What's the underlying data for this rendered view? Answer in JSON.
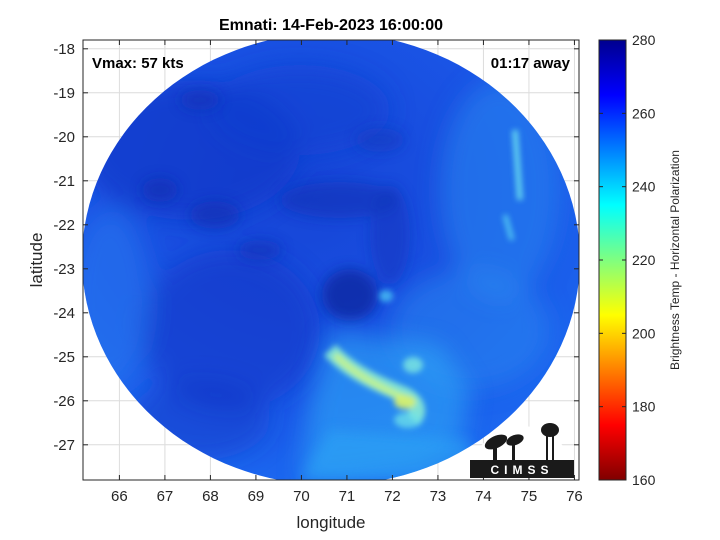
{
  "title": "Emnati: 14-Feb-2023 16:00:00",
  "annotations": {
    "vmax": "Vmax: 57 kts",
    "time_offset": "01:17 away"
  },
  "axes": {
    "xlabel": "longitude",
    "ylabel": "latitude",
    "xlim": [
      65.2,
      76.1
    ],
    "ylim": [
      -27.8,
      -17.8
    ],
    "xticks": [
      66,
      67,
      68,
      69,
      70,
      71,
      72,
      73,
      74,
      75,
      76
    ],
    "yticks": [
      -18,
      -19,
      -20,
      -21,
      -22,
      -23,
      -24,
      -25,
      -26,
      -27
    ],
    "grid": true
  },
  "colorbar": {
    "label": "Brightness Temp - Horizontal Polarization",
    "min": 160,
    "max": 280,
    "ticks": [
      280,
      260,
      240,
      220,
      200,
      180,
      160
    ],
    "colormap": "jet"
  },
  "chart_data": {
    "type": "heatmap",
    "title": "Emnati: 14-Feb-2023 16:00:00",
    "xlabel": "longitude",
    "ylabel": "latitude",
    "xlim": [
      65.2,
      76.1
    ],
    "ylim": [
      -27.8,
      -17.8
    ],
    "storm_center": {
      "lon": 70.9,
      "lat": -23.3
    },
    "swath_center": {
      "lon": 70.7,
      "lat": -22.9
    },
    "features": [
      {
        "name": "cold band",
        "lon": 71.8,
        "lat": -25.7,
        "value": 215
      },
      {
        "name": "cold band",
        "lon": 72.2,
        "lat": -26.0,
        "value": 210
      },
      {
        "name": "cold band",
        "lon": 70.6,
        "lat": -25.2,
        "value": 235
      },
      {
        "name": "cold band",
        "lon": 72.5,
        "lat": -26.3,
        "value": 228
      },
      {
        "name": "eye",
        "lon": 70.8,
        "lat": -23.5,
        "value": 270
      },
      {
        "name": "warm cloud",
        "lon": 69.0,
        "lat": -21.5,
        "value": 268
      },
      {
        "name": "streak",
        "lon": 74.7,
        "lat": -20.0,
        "value": 238
      }
    ],
    "colorbar": {
      "min": 160,
      "max": 280,
      "label": "Brightness Temp - Horizontal Polarization"
    }
  },
  "logo": {
    "text": "CIMSS"
  }
}
